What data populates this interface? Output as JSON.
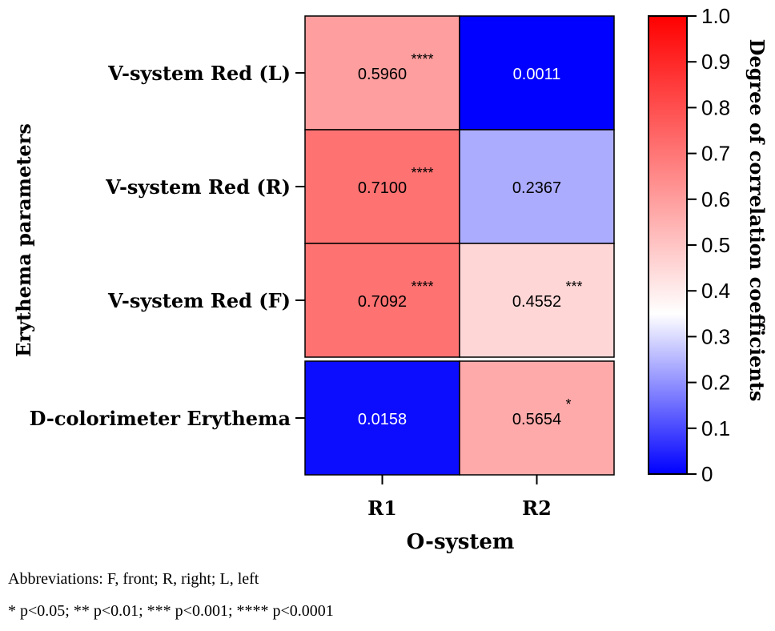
{
  "chart_data": {
    "type": "heatmap",
    "ylabel": "Erythema parameters",
    "xlabel": "O-system",
    "columns": [
      "R1",
      "R2"
    ],
    "rows": [
      "V-system Red (L)",
      "V-system Red (R)",
      "V-system Red (F)",
      "D-colorimeter Erythema"
    ],
    "values": [
      [
        "0.5960",
        "0.0011"
      ],
      [
        "0.7100",
        "0.2367"
      ],
      [
        "0.7092",
        "0.4552"
      ],
      [
        "0.0158",
        "0.5654"
      ]
    ],
    "significance": [
      [
        "****",
        ""
      ],
      [
        "****",
        ""
      ],
      [
        "****",
        "***"
      ],
      [
        "",
        "*"
      ]
    ],
    "colorbar": {
      "label": "Degree of correlation coefficients",
      "range": [
        0,
        1.0
      ],
      "ticks": [
        "0",
        "0.1",
        "0.2",
        "0.3",
        "0.4",
        "0.5",
        "0.6",
        "0.7",
        "0.8",
        "0.9",
        "1.0"
      ],
      "colors": [
        "#0000ff",
        "#ffffff",
        "#ff0000"
      ],
      "midpoint": 0.35
    }
  },
  "footnotes": {
    "abbreviations": "Abbreviations: F, front; R, right; L, left",
    "significance": "* p<0.05; ** p<0.01; *** p<0.001; **** p<0.0001"
  }
}
